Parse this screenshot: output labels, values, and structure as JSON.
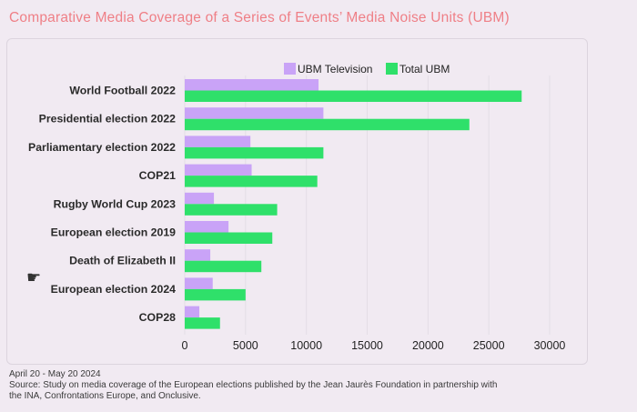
{
  "header": {
    "title": "Comparative Media Coverage of a Series of Events’ Media Noise Units (UBM)"
  },
  "chart_data": {
    "type": "bar",
    "orientation": "horizontal",
    "categories": [
      "World Football 2022",
      "Presidential election 2022",
      "Parliamentary election 2022",
      "COP21",
      "Rugby World Cup 2023",
      "European election 2019",
      "Death of Elizabeth II",
      "European election 2024",
      "COP28"
    ],
    "series": [
      {
        "name": "UBM Television",
        "color": "#c9a3f7",
        "values": [
          11000,
          11400,
          5400,
          5500,
          2400,
          3600,
          2100,
          2300,
          1200
        ]
      },
      {
        "name": "Total UBM",
        "color": "#2fe06a",
        "values": [
          27700,
          23400,
          11400,
          10900,
          7600,
          7200,
          6300,
          5000,
          2900
        ]
      }
    ],
    "xlim": [
      0,
      30000
    ],
    "xticks": [
      "0",
      "5000",
      "10000",
      "15000",
      "20000",
      "25000",
      "30000"
    ],
    "legend": "top",
    "grid": true
  },
  "footer": {
    "date_range": "April 20 - May 20 2024",
    "source_line1": "Source: Study on media coverage of the European elections published by the Jean Jaurès Foundation in partnership with",
    "source_line2": "the INA, Confrontations Europe, and Onclusive."
  },
  "decor": {
    "pointer_icon": "☛"
  }
}
